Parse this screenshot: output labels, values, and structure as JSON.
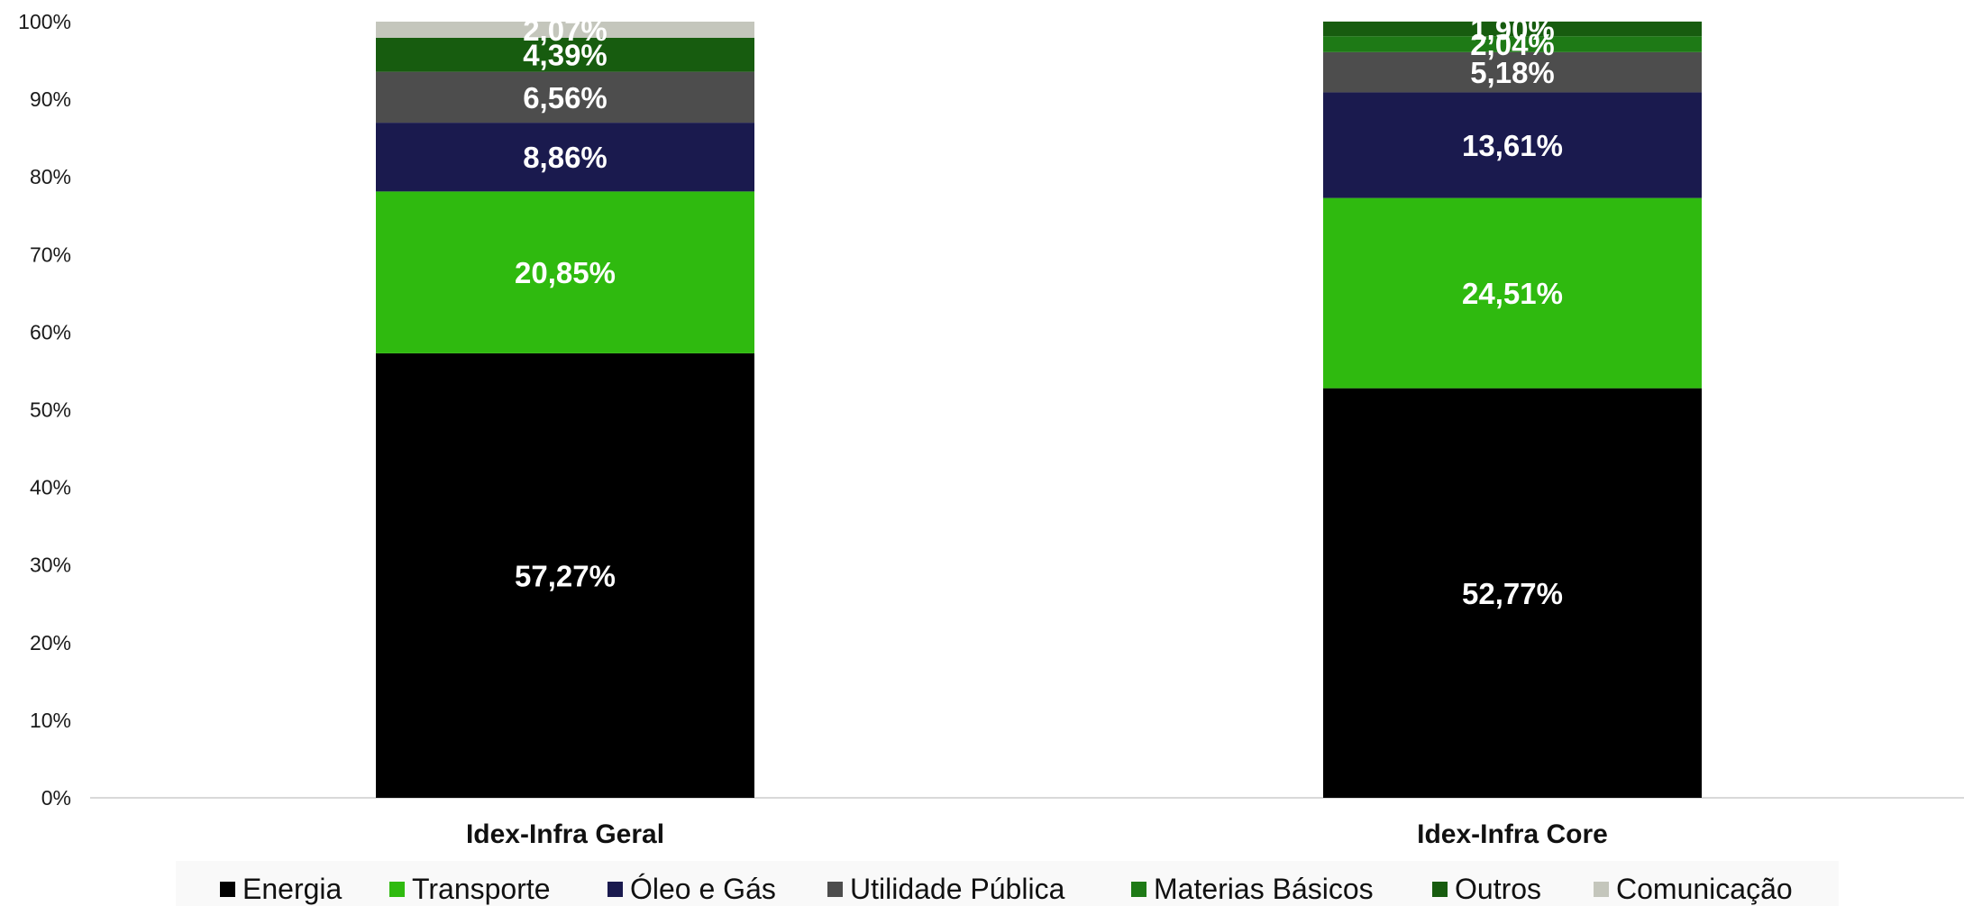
{
  "chart_data": {
    "type": "bar",
    "stacked": true,
    "normalized": true,
    "categories": [
      "Idex-Infra Geral",
      "Idex-Infra Core"
    ],
    "series": [
      {
        "name": "Energia",
        "color": "#000000",
        "values": [
          57.27,
          52.77
        ],
        "labels": [
          "57,27%",
          "52,77%"
        ]
      },
      {
        "name": "Transporte",
        "color": "#2fba0f",
        "values": [
          20.85,
          24.51
        ],
        "labels": [
          "20,85%",
          "24,51%"
        ]
      },
      {
        "name": "Óleo e Gás",
        "color": "#1a1a4e",
        "values": [
          8.86,
          13.61
        ],
        "labels": [
          "8,86%",
          "13,61%"
        ]
      },
      {
        "name": "Utilidade Pública",
        "color": "#4d4d4d",
        "values": [
          6.56,
          5.18
        ],
        "labels": [
          "6,56%",
          "5,18%"
        ]
      },
      {
        "name": "Materias Básicos",
        "color": "#1e7a16",
        "values": [
          0,
          2.04
        ],
        "labels": [
          "",
          "2,04%"
        ]
      },
      {
        "name": "Outros",
        "color": "#175c0f",
        "values": [
          4.39,
          1.9
        ],
        "labels": [
          "4,39%",
          "1,90%"
        ]
      },
      {
        "name": "Comunicação",
        "color": "#c4c6bc",
        "values": [
          2.07,
          0
        ],
        "labels": [
          "2,07%",
          ""
        ]
      }
    ],
    "yticks": [
      "0%",
      "10%",
      "20%",
      "30%",
      "40%",
      "50%",
      "60%",
      "70%",
      "80%",
      "90%",
      "100%"
    ],
    "ylim": [
      0,
      100
    ],
    "xlabel": "",
    "ylabel": "",
    "title": "",
    "legend_position": "bottom",
    "grid": false
  }
}
